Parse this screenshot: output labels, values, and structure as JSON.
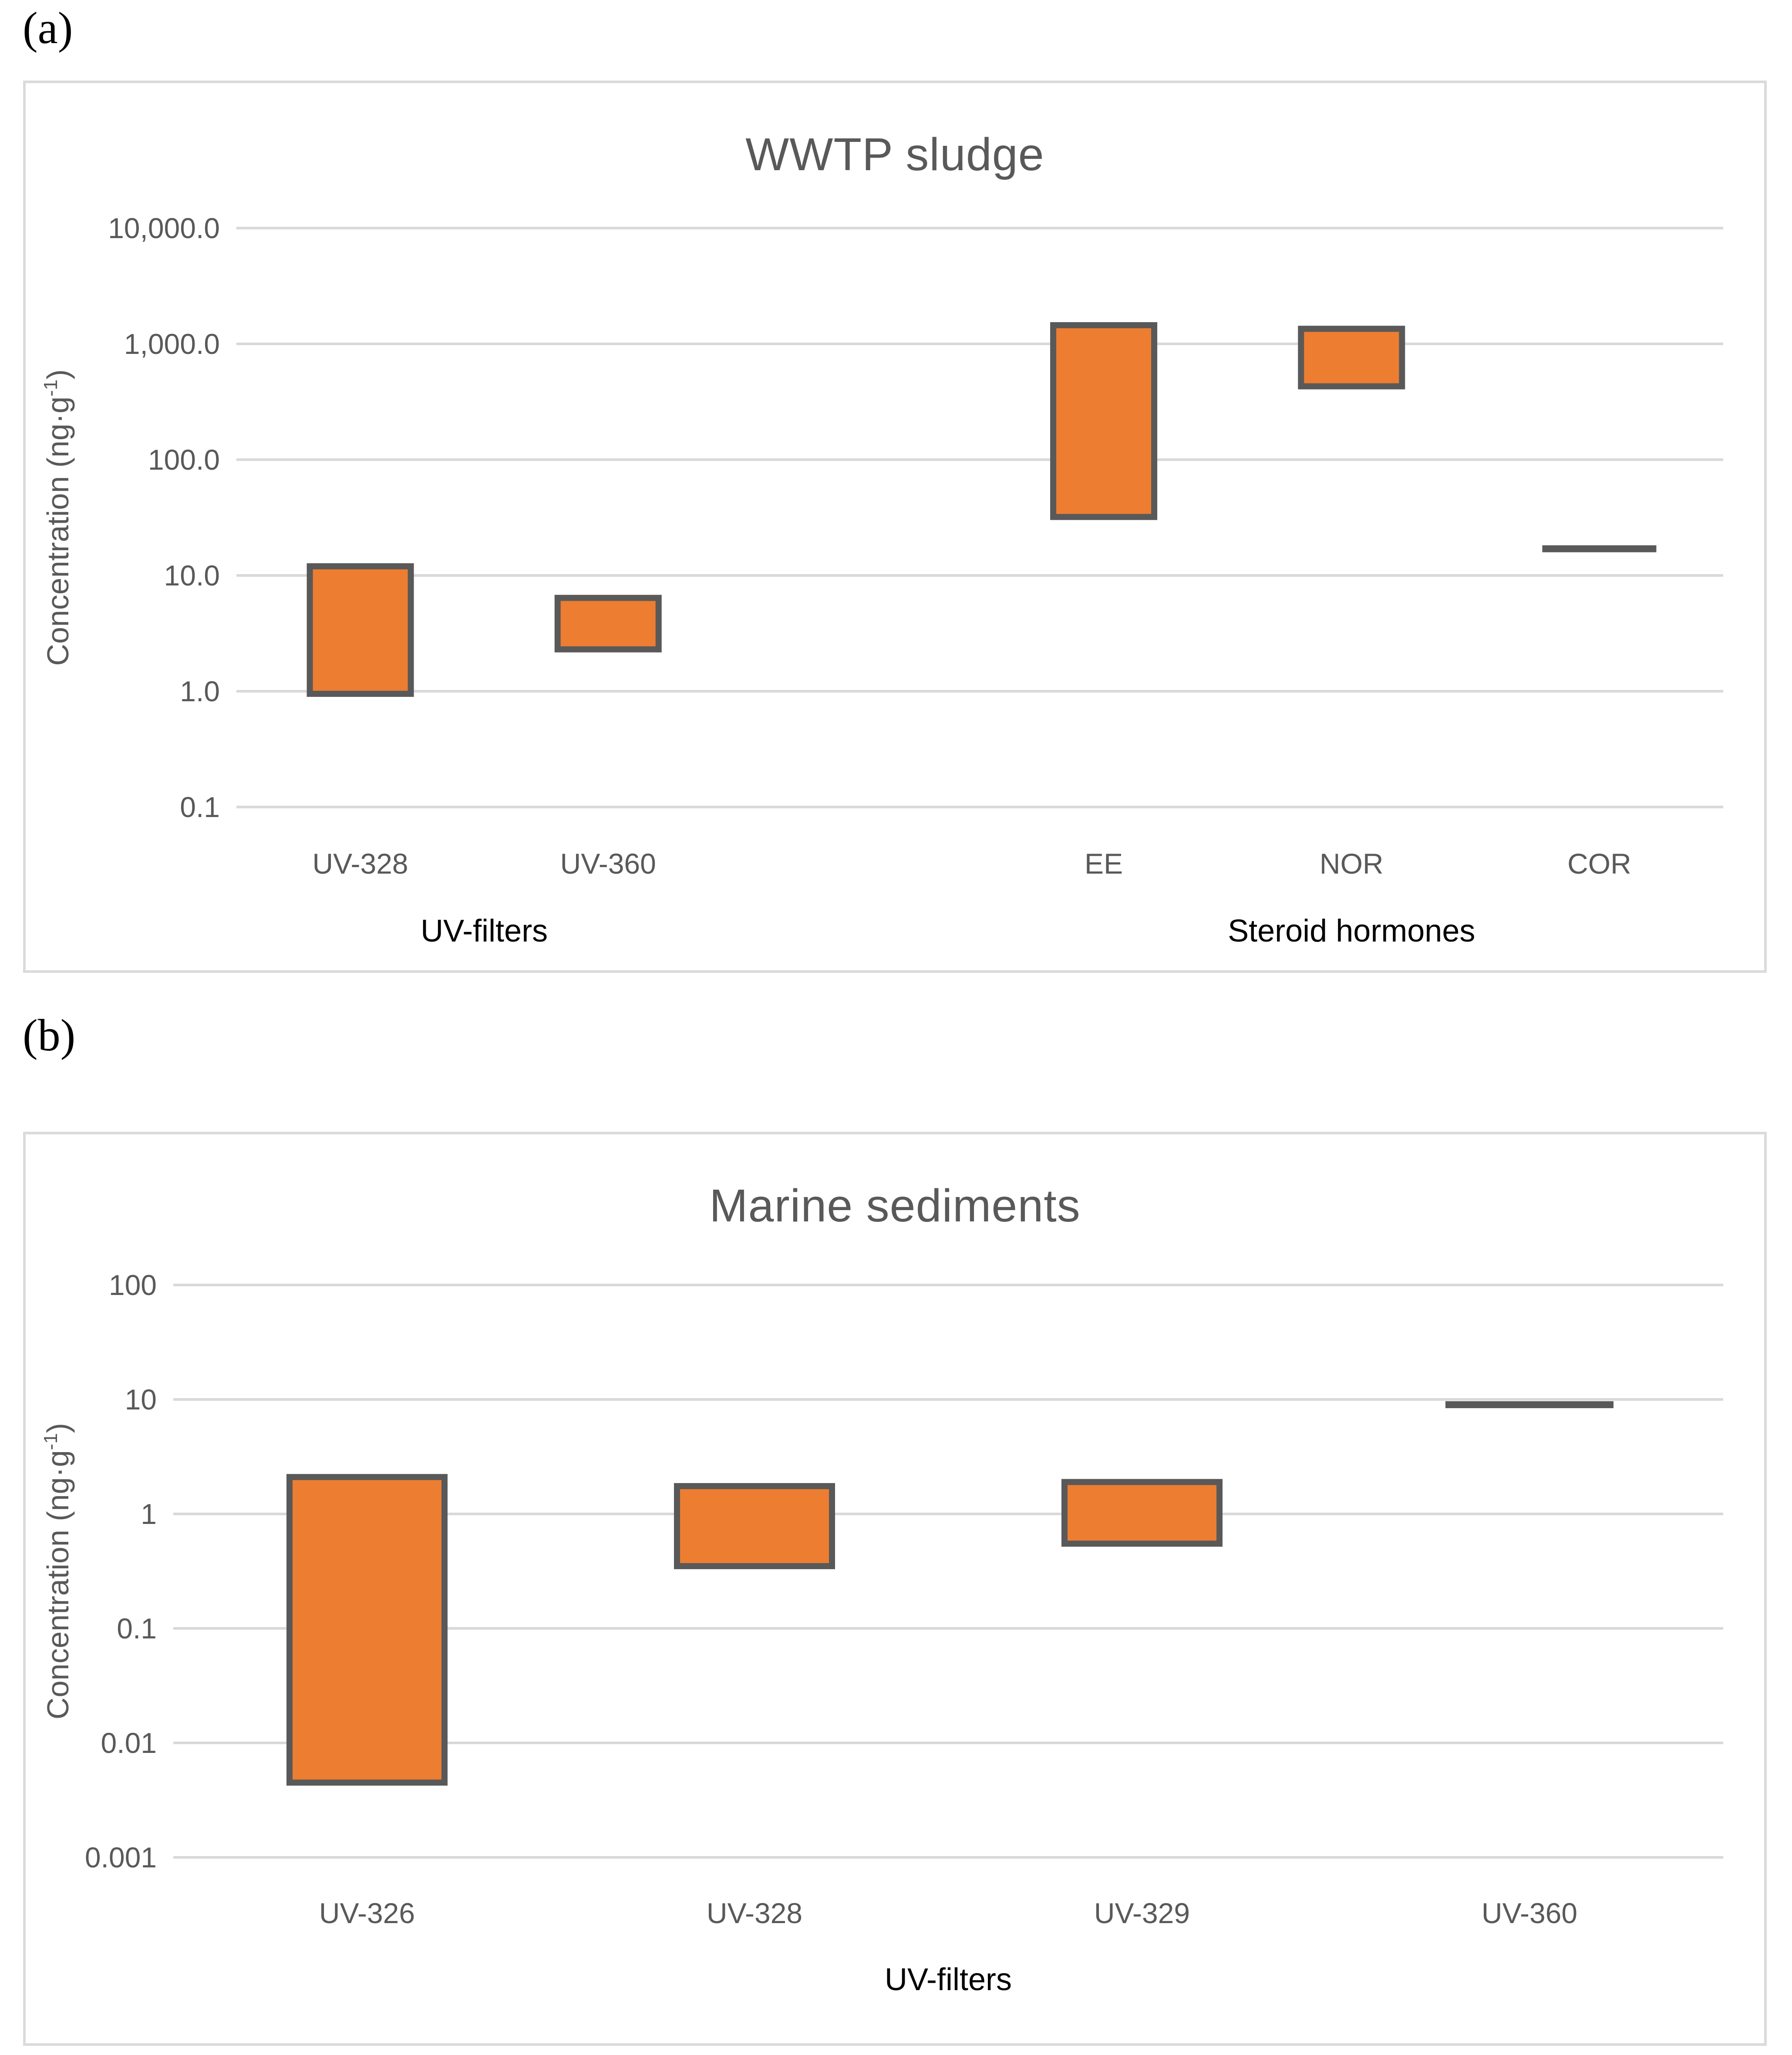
{
  "figure": {
    "panel_a_label": "(a)",
    "panel_b_label": "(b)"
  },
  "style": {
    "bar_fill": "#ED7D31",
    "bar_stroke": "#595959",
    "single_value_line_color": "#595959",
    "gridline_color": "#D9D9D9",
    "panel_border_color": "#DBDBDB",
    "axis_text_color": "#595959",
    "title_color": "#595959",
    "group_label_color": "#000000"
  },
  "chart_data": [
    {
      "type": "floating-bar",
      "scale": "log",
      "title": "WWTP sludge",
      "ylabel": {
        "prefix": "Concentration (ng·g",
        "sup": "-1",
        "suffix": ")"
      },
      "ylim": [
        0.1,
        10000
      ],
      "grid": true,
      "yticks": [
        {
          "label": "10,000.0",
          "value": 10000
        },
        {
          "label": "1,000.0",
          "value": 1000
        },
        {
          "label": "100.0",
          "value": 100
        },
        {
          "label": "10.0",
          "value": 10
        },
        {
          "label": "1.0",
          "value": 1
        },
        {
          "label": "0.1",
          "value": 0.1
        }
      ],
      "points": [
        {
          "label": "UV-328",
          "min": 0.95,
          "max": 12
        },
        {
          "label": "UV-360",
          "min": 2.3,
          "max": 6.4
        },
        {
          "label": "",
          "min": null,
          "max": null
        },
        {
          "label": "EE",
          "min": 32,
          "max": 1450
        },
        {
          "label": "NOR",
          "min": 430,
          "max": 1350
        },
        {
          "label": "COR",
          "min": 17,
          "max": 17
        }
      ],
      "group_labels": [
        {
          "label": "UV-filters",
          "from": 0,
          "to": 1
        },
        {
          "label": "Steroid hormones",
          "from": 3,
          "to": 5
        }
      ]
    },
    {
      "type": "floating-bar",
      "scale": "log",
      "title": "Marine sediments",
      "ylabel": {
        "prefix": "Concentration (ng·g",
        "sup": "-1",
        "suffix": ")"
      },
      "ylim": [
        0.001,
        100
      ],
      "grid": true,
      "yticks": [
        {
          "label": "100",
          "value": 100
        },
        {
          "label": "10",
          "value": 10
        },
        {
          "label": "1",
          "value": 1
        },
        {
          "label": "0.1",
          "value": 0.1
        },
        {
          "label": "0.01",
          "value": 0.01
        },
        {
          "label": "0.001",
          "value": 0.001
        }
      ],
      "points": [
        {
          "label": "UV-326",
          "min": 0.0045,
          "max": 2.1
        },
        {
          "label": "UV-328",
          "min": 0.35,
          "max": 1.75
        },
        {
          "label": "UV-329",
          "min": 0.55,
          "max": 1.9
        },
        {
          "label": "UV-360",
          "min": 9,
          "max": 9
        }
      ],
      "group_labels": [
        {
          "label": "UV-filters",
          "from": 0,
          "to": 3
        }
      ]
    }
  ]
}
